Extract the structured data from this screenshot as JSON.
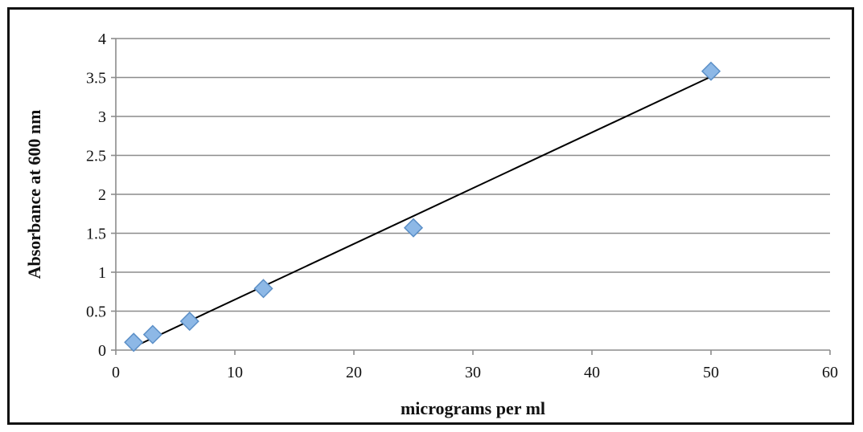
{
  "chart_data": {
    "type": "scatter",
    "title": "",
    "xlabel": "micrograms per ml",
    "ylabel": "Absorbance at 600 nm",
    "xlim": [
      0,
      60
    ],
    "ylim": [
      0,
      4
    ],
    "x_ticks": [
      "0",
      "10",
      "20",
      "30",
      "40",
      "50",
      "60"
    ],
    "y_ticks": [
      "0",
      "0.5",
      "1",
      "1.5",
      "2",
      "2.5",
      "3",
      "3.5",
      "4"
    ],
    "grid": "horizontal",
    "legend": "none",
    "marker": "diamond",
    "series": [
      {
        "x": [
          1.5,
          3.1,
          6.2,
          12.4,
          25,
          50
        ],
        "y": [
          0.1,
          0.2,
          0.37,
          0.79,
          1.57,
          3.58
        ]
      }
    ],
    "trendline": {
      "type": "linear",
      "x": [
        1.5,
        50
      ],
      "y": [
        0.04,
        3.51
      ]
    },
    "colors": {
      "marker_fill": "#8db8e6",
      "marker_stroke": "#5b8fc7",
      "trendline": "#000000",
      "gridline": "#8c8c8c",
      "axis": "#8c8c8c"
    }
  }
}
